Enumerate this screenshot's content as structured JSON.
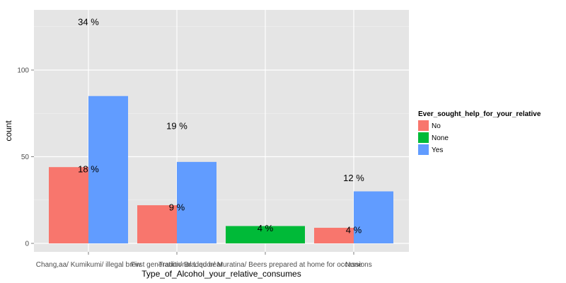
{
  "chart_data": {
    "type": "bar",
    "xlabel": "Type_of_Alcohol_your_relative_consumes",
    "ylabel": "count",
    "categories": [
      "Chang,aa/ Kumikumi/ illegal brew",
      "First generation/ Braded bear",
      "Traditional Liquor/ Muratina/ Beers prepared at home for occassions",
      ""
    ],
    "tick_labels": [
      "Chang,aa/ Kumikumi/ illegal brew",
      "First generation/ Braded bear",
      "Traditional Liquor/ Muratina/ Beers prepared at home for occassions",
      "None"
    ],
    "ylim": [
      0,
      140
    ],
    "yticks": [
      0,
      50,
      100
    ],
    "grid": true,
    "legend": {
      "title": "Ever_sought_help_for_your_relative",
      "position": "right",
      "entries": [
        {
          "label": "No",
          "color": "#F8766D"
        },
        {
          "label": "None",
          "color": "#00BA38"
        },
        {
          "label": "Yes",
          "color": "#619CFF"
        }
      ]
    },
    "bars": [
      {
        "category": 0,
        "series": "No",
        "value": 44,
        "color": "#F8766D",
        "offset": -1
      },
      {
        "category": 0,
        "series": "Yes",
        "value": 85,
        "color": "#619CFF",
        "offset": 1
      },
      {
        "category": 1,
        "series": "No",
        "value": 22,
        "color": "#F8766D",
        "offset": -1
      },
      {
        "category": 1,
        "series": "Yes",
        "value": 47,
        "color": "#619CFF",
        "offset": 1
      },
      {
        "category": 2,
        "series": "None",
        "value": 10,
        "color": "#00BA38",
        "offset": 0
      },
      {
        "category": 3,
        "series": "No",
        "value": 9,
        "color": "#F8766D",
        "offset": -1
      },
      {
        "category": 3,
        "series": "Yes",
        "value": 30,
        "color": "#619CFF",
        "offset": 1
      }
    ],
    "annotations": [
      {
        "text": "34 %",
        "category": 0,
        "offset": 0,
        "y": 128
      },
      {
        "text": "18 %",
        "category": 0,
        "offset": 0,
        "y": 43
      },
      {
        "text": "19 %",
        "category": 1,
        "offset": 0,
        "y": 68
      },
      {
        "text": "9 %",
        "category": 1,
        "offset": 0,
        "y": 21
      },
      {
        "text": "4 %",
        "category": 2,
        "offset": 0,
        "y": 9
      },
      {
        "text": "12 %",
        "category": 3,
        "offset": 0,
        "y": 38
      },
      {
        "text": "4 %",
        "category": 3,
        "offset": 0,
        "y": 8
      }
    ],
    "colors": {
      "panel_bg": "#E5E5E5",
      "grid": "#FFFFFF"
    }
  }
}
